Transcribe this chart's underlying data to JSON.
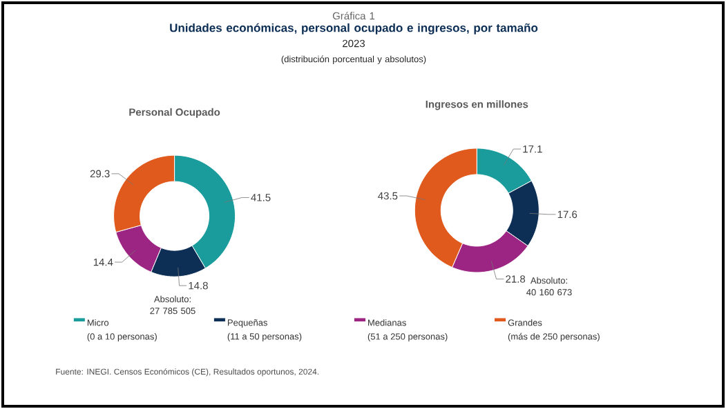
{
  "chart_data": [
    {
      "type": "donut",
      "title": "Personal Ocupado",
      "categories": [
        "Micro\n(0 a 10 personas)",
        "Pequeñas\n(11 a 50 personas)",
        "Medianas\n(51 a 250 personas)",
        "Grandes\n(más de 250 personas)"
      ],
      "values": [
        41.5,
        14.8,
        14.4,
        29.3
      ],
      "colors": [
        "#1a9c9c",
        "#0d2f55",
        "#9c2482",
        "#e05a1e"
      ],
      "data_labels": true,
      "legend": "bottom",
      "annotations": [
        "Gráfica 1",
        "Unidades económicas, personal ocupado e ingresos, por tamaño",
        "2023",
        "(distribución porcentual y absolutos)",
        "Absoluto:\n27 785 505",
        "Fuente: INEGI. Censos Económicos (CE), Resultados oportunos, 2024."
      ]
    },
    {
      "type": "donut",
      "title": "Ingresos en millones",
      "values": [
        17.1,
        17.6,
        21.8,
        43.5
      ],
      "colors": [
        "#1a9c9c",
        "#0d2f55",
        "#9c2482",
        "#e05a1e"
      ],
      "data_labels": true,
      "annotations": [
        "Absoluto:\n40 160 673"
      ]
    }
  ]
}
